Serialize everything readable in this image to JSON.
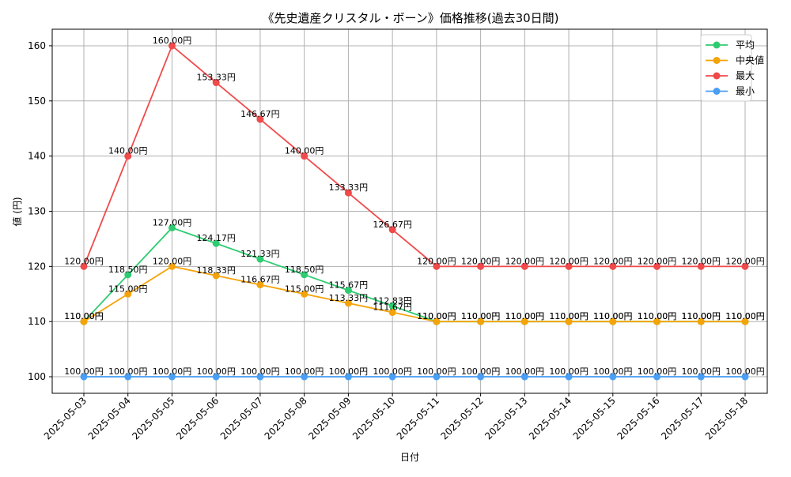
{
  "chart_data": {
    "type": "line",
    "title": "《先史遺産クリスタル・ボーン》価格推移(過去30日間)",
    "xlabel": "日付",
    "ylabel": "値 (円)",
    "x": [
      "2025-05-03",
      "2025-05-04",
      "2025-05-05",
      "2025-05-06",
      "2025-05-07",
      "2025-05-08",
      "2025-05-09",
      "2025-05-10",
      "2025-05-11",
      "2025-05-12",
      "2025-05-13",
      "2025-05-14",
      "2025-05-15",
      "2025-05-16",
      "2025-05-17",
      "2025-05-18"
    ],
    "ylim": [
      97,
      163
    ],
    "yticks": [
      100,
      110,
      120,
      130,
      140,
      150,
      160
    ],
    "grid": true,
    "legend_position": "top-right",
    "value_suffix": "円",
    "series": [
      {
        "name": "平均",
        "color": "#2ecc71",
        "values": [
          110.0,
          118.5,
          127.0,
          124.17,
          121.33,
          118.5,
          115.67,
          112.83,
          110.0,
          110.0,
          110.0,
          110.0,
          110.0,
          110.0,
          110.0,
          110.0
        ]
      },
      {
        "name": "中央値",
        "color": "#f5a30a",
        "values": [
          110.0,
          115.0,
          120.0,
          118.33,
          116.67,
          115.0,
          113.33,
          111.67,
          110.0,
          110.0,
          110.0,
          110.0,
          110.0,
          110.0,
          110.0,
          110.0
        ]
      },
      {
        "name": "最大",
        "color": "#f04a4a",
        "values": [
          120.0,
          140.0,
          160.0,
          153.33,
          146.67,
          140.0,
          133.33,
          126.67,
          120.0,
          120.0,
          120.0,
          120.0,
          120.0,
          120.0,
          120.0,
          120.0
        ]
      },
      {
        "name": "最小",
        "color": "#4a9ff5",
        "values": [
          100.0,
          100.0,
          100.0,
          100.0,
          100.0,
          100.0,
          100.0,
          100.0,
          100.0,
          100.0,
          100.0,
          100.0,
          100.0,
          100.0,
          100.0,
          100.0
        ]
      }
    ]
  }
}
